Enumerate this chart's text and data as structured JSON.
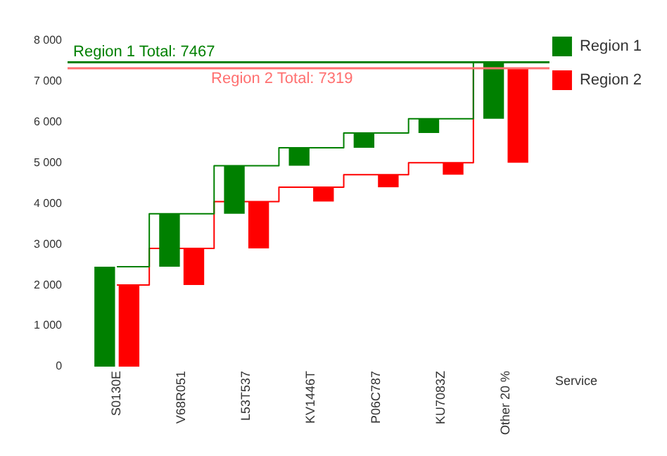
{
  "chart_data": {
    "type": "bar",
    "xlabel": "Service",
    "categories": [
      "S0130E",
      "V68R051",
      "L53T537",
      "KV1446T",
      "P06C787",
      "KU7083Z",
      "Other 20 %"
    ],
    "series": [
      {
        "name": "Region 1",
        "color": "#008000",
        "values": [
          2450,
          1300,
          1180,
          440,
          360,
          350,
          1387
        ],
        "base": [
          0,
          2450,
          3750,
          4930,
          5370,
          5730,
          6080
        ]
      },
      {
        "name": "Region 2",
        "color": "#ff0000",
        "values": [
          2000,
          900,
          1150,
          350,
          310,
          290,
          2319
        ],
        "base": [
          0,
          2000,
          2900,
          4050,
          4400,
          4710,
          5000
        ]
      },
      {
        "type": "step",
        "color": "#008000",
        "values": [
          2450,
          3750,
          4930,
          5370,
          5730,
          6080,
          7467
        ]
      },
      {
        "type": "step",
        "color": "#ff0000",
        "values": [
          2000,
          2900,
          4050,
          4400,
          4710,
          5000,
          7319
        ]
      }
    ],
    "ylim": [
      0,
      8000
    ],
    "yticks": [
      {
        "value": 0,
        "label": "0"
      },
      {
        "value": 1000,
        "label": "1 000"
      },
      {
        "value": 2000,
        "label": "2 000"
      },
      {
        "value": 3000,
        "label": "3 000"
      },
      {
        "value": 4000,
        "label": "4 000"
      },
      {
        "value": 5000,
        "label": "5 000"
      },
      {
        "value": 6000,
        "label": "6 000"
      },
      {
        "value": 7000,
        "label": "7 000"
      },
      {
        "value": 8000,
        "label": "8 000"
      }
    ],
    "ref_lines": [
      {
        "axis": "y",
        "value": 7467,
        "label": "Region 1 Total: 7467",
        "color": "#008000"
      },
      {
        "axis": "y",
        "value": 7319,
        "label": "Region 2 Total: 7319",
        "color": "#ff7070"
      }
    ],
    "grid": false,
    "legend": "top right"
  }
}
